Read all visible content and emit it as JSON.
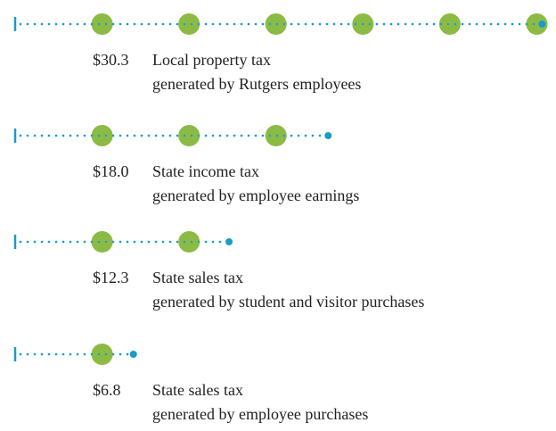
{
  "chart_data": {
    "type": "dotline",
    "values": [
      30.3,
      18.0,
      12.3,
      6.8
    ],
    "value_labels": [
      "$30.3",
      "$18.0",
      "$12.3",
      "$6.8"
    ],
    "descriptions": [
      [
        "Local property tax",
        "generated by Rutgers employees"
      ],
      [
        "State income tax",
        "generated by employee earnings"
      ],
      [
        "State sales tax",
        "generated by student and visitor purchases"
      ],
      [
        "State sales tax",
        "generated by employee purchases"
      ]
    ],
    "xlim": [
      0,
      31
    ],
    "line_color": "#1a9bc8",
    "circle_color": "#8cbb45"
  }
}
